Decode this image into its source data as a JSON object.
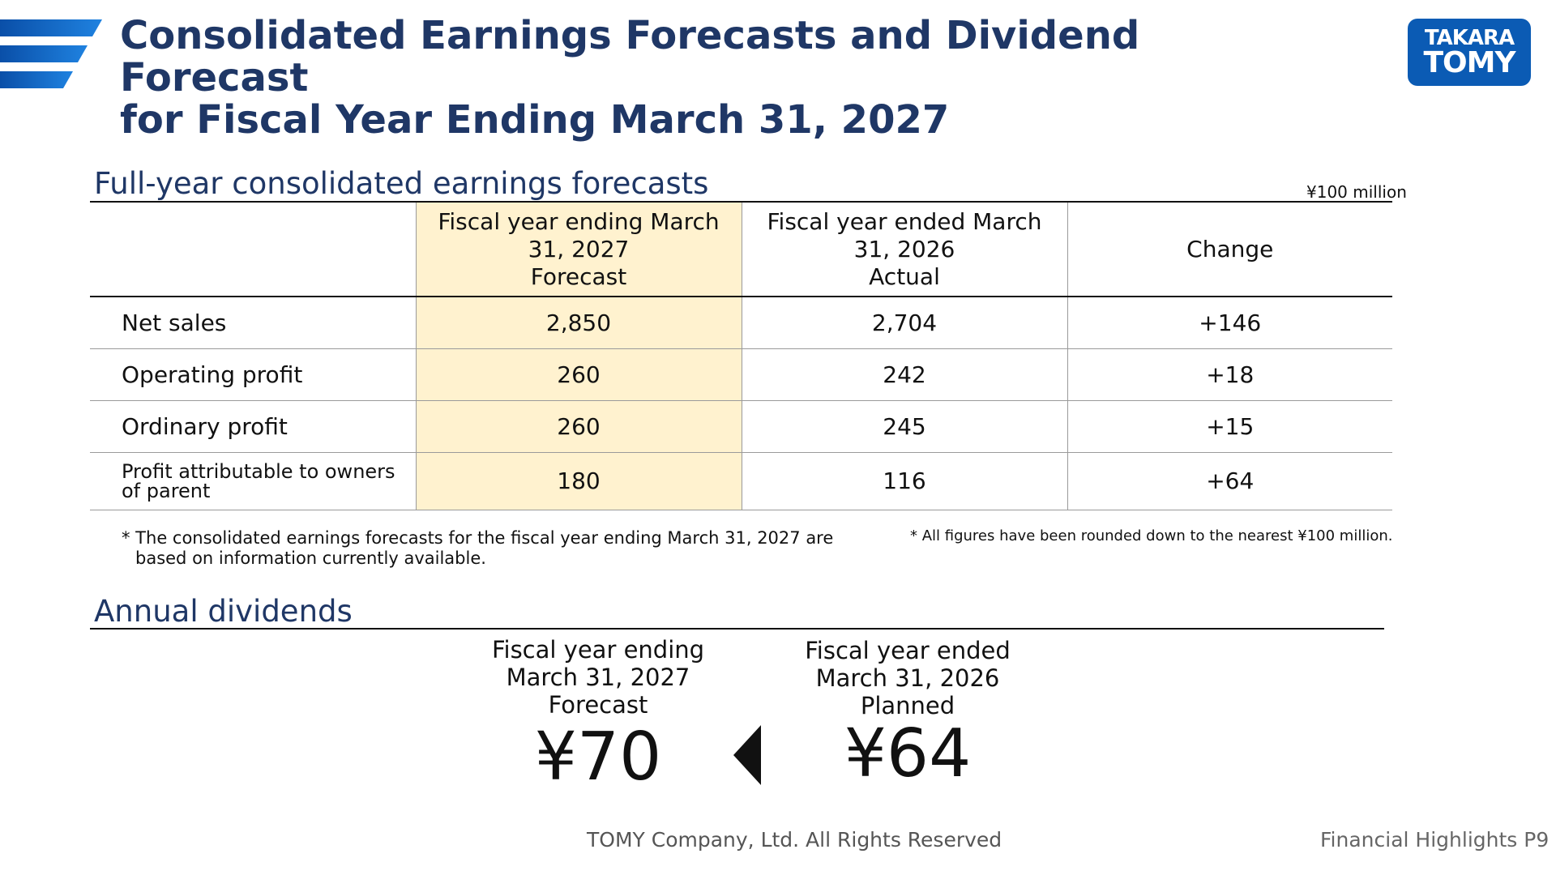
{
  "header": {
    "title_line1": "Consolidated Earnings Forecasts and Dividend Forecast",
    "title_line2": "for Fiscal Year Ending March 31, 2027",
    "logo_line1": "TAKARA",
    "logo_line2": "TOMY",
    "accent_color": "#1f3766",
    "logo_color": "#0b5bb4"
  },
  "earnings": {
    "section_title": "Full-year consolidated earnings forecasts",
    "unit": "¥100 million",
    "columns": [
      {
        "line1": "Fiscal year ending March",
        "line2": "31, 2027",
        "line3": "Forecast"
      },
      {
        "line1": "Fiscal year ended March",
        "line2": "31, 2026",
        "line3": "Actual"
      },
      {
        "line1": "Change"
      }
    ],
    "rows": [
      {
        "label": "Net sales",
        "forecast": "2,850",
        "actual": "2,704",
        "change": "+146"
      },
      {
        "label": "Operating profit",
        "forecast": "260",
        "actual": "242",
        "change": "+18"
      },
      {
        "label": "Ordinary profit",
        "forecast": "260",
        "actual": "245",
        "change": "+15"
      },
      {
        "label": "Profit attributable to owners of parent",
        "forecast": "180",
        "actual": "116",
        "change": "+64"
      }
    ],
    "highlight_color": "#fff2cf",
    "note_left_line1": "* The consolidated earnings forecasts for the fiscal year ending March 31, 2027 are",
    "note_left_line2": "based on information currently available.",
    "note_right": "* All figures have been rounded down to the nearest ¥100 million."
  },
  "dividends": {
    "section_title": "Annual dividends",
    "forecast": {
      "line1": "Fiscal year ending",
      "line2": "March 31, 2027",
      "line3": "Forecast",
      "value": "¥70"
    },
    "planned": {
      "line1": "Fiscal year ended",
      "line2": "March 31, 2026",
      "line3": "Planned",
      "value": "¥64"
    }
  },
  "footer": {
    "copyright": "TOMY Company, Ltd. All Rights Reserved",
    "page": "Financial Highlights P9"
  }
}
